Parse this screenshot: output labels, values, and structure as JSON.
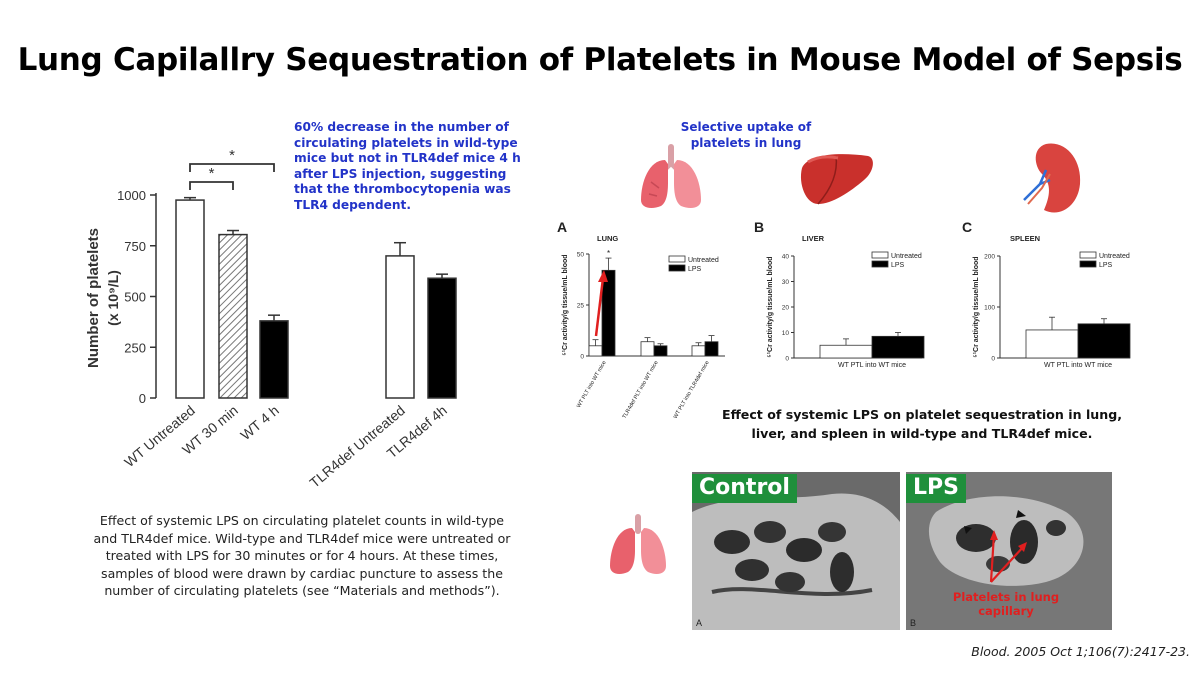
{
  "title": "Lung Capilallry Sequestration of Platelets in Mouse Model of Sepsis",
  "note": "60% decrease in the number of circulating platelets in wild-type mice but not in TLR4def mice 4 h after LPS injection, suggesting that the thrombocytopenia was TLR4 dependent.",
  "caption_left": "Effect of systemic LPS on circulating platelet counts in wild-type and TLR4def mice. Wild-type and TLR4def mice were untreated or treated with LPS for 30 minutes or for 4 hours. At these times, samples of blood were drawn by cardiac puncture to assess the number of circulating platelets (see “Materials and methods”).",
  "uptake_note": "Selective uptake of platelets in lung",
  "caption_right": "Effect of systemic LPS on platelet sequestration in lung, liver, and spleen in wild-type and TLR4def mice.",
  "citation": "Blood. 2005 Oct 1;106(7):2417-23.",
  "icons": [
    "lungs-icon",
    "liver-icon",
    "spleen-icon",
    "lungs-icon"
  ],
  "micrographs": {
    "control_label": "Control",
    "lps_label": "LPS",
    "annotation": "Platelets in lung capillary",
    "letter_a": "A",
    "letter_b": "B"
  },
  "chart_data": [
    {
      "type": "bar",
      "ylabel": "Number of platelets",
      "ylabel_unit": "(x 10⁹/L)",
      "ylim": [
        0,
        1000
      ],
      "yticks": [
        "0",
        "250",
        "500",
        "750",
        "1000"
      ],
      "categories": [
        "WT Untreated",
        "WT 30 min",
        "WT 4 h",
        "TLR4def Untreated",
        "TLR4def 4h"
      ],
      "values": [
        975,
        805,
        380,
        700,
        590
      ],
      "errors": [
        12,
        20,
        28,
        65,
        20
      ],
      "significance": [
        "*",
        "*"
      ],
      "bar_styles": [
        "white",
        "hatched",
        "black",
        "white",
        "black"
      ]
    },
    {
      "type": "bar",
      "panel": "A",
      "title": "LUNG",
      "ylabel": "⁵¹Cr activity/g tissue/mL blood",
      "ylim": [
        0,
        50
      ],
      "yticks": [
        "0",
        "25",
        "50"
      ],
      "categories": [
        "WT PLT into WT mice",
        "TLR4def PLT into WT mice",
        "WT PLT into TLR4def mice"
      ],
      "series": [
        {
          "name": "Untreated",
          "values": [
            5,
            7,
            5
          ],
          "errors": [
            3,
            2,
            1.5
          ]
        },
        {
          "name": "LPS",
          "values": [
            42,
            5,
            7
          ],
          "errors": [
            6,
            1,
            3
          ]
        }
      ],
      "significance": [
        "*"
      ]
    },
    {
      "type": "bar",
      "panel": "B",
      "title": "LIVER",
      "ylabel": "⁵¹Cr activity/g tissue/mL blood",
      "ylim": [
        0,
        40
      ],
      "yticks": [
        "0",
        "10",
        "20",
        "30",
        "40"
      ],
      "categories": [
        "WT PTL into WT mice"
      ],
      "series": [
        {
          "name": "Untreated",
          "values": [
            5
          ],
          "errors": [
            2.5
          ]
        },
        {
          "name": "LPS",
          "values": [
            8.5
          ],
          "errors": [
            1.5
          ]
        }
      ]
    },
    {
      "type": "bar",
      "panel": "C",
      "title": "SPLEEN",
      "ylabel": "⁵¹Cr activity/g tissue/mL blood",
      "ylim": [
        0,
        200
      ],
      "yticks": [
        "0",
        "100",
        "200"
      ],
      "categories": [
        "WT PTL into WT mice"
      ],
      "series": [
        {
          "name": "Untreated",
          "values": [
            55
          ],
          "errors": [
            25
          ]
        },
        {
          "name": "LPS",
          "values": [
            67
          ],
          "errors": [
            10
          ]
        }
      ]
    }
  ]
}
